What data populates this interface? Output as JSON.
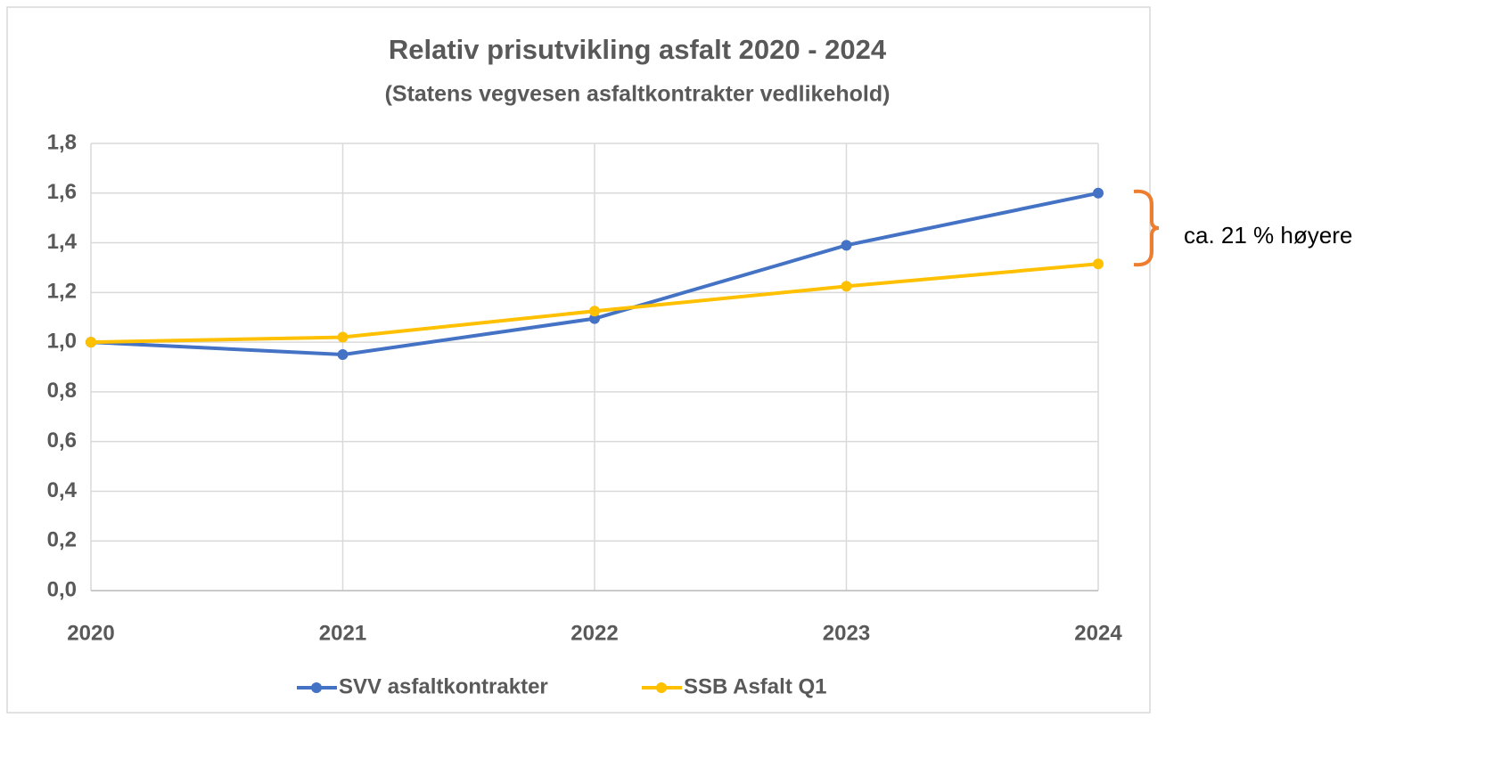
{
  "chart_data": {
    "type": "line",
    "title": "Relativ prisutvikling asfalt  2020 - 2024",
    "subtitle": "(Statens vegvesen asfaltkontrakter vedlikehold)",
    "x": [
      2020,
      2021,
      2022,
      2023,
      2024
    ],
    "xlim": [
      2020,
      2024
    ],
    "xticks": [
      2020,
      2021,
      2022,
      2023,
      2024
    ],
    "ylim": [
      0,
      1.8
    ],
    "yticks": [
      {
        "value": 0,
        "label": "0,0"
      },
      {
        "value": 0.2,
        "label": "0,2"
      },
      {
        "value": 0.4,
        "label": "0,4"
      },
      {
        "value": 0.6,
        "label": "0,6"
      },
      {
        "value": 0.8,
        "label": "0,8"
      },
      {
        "value": 1.0,
        "label": "1,0"
      },
      {
        "value": 1.2,
        "label": "1,2"
      },
      {
        "value": 1.4,
        "label": "1,4"
      },
      {
        "value": 1.6,
        "label": "1,6"
      },
      {
        "value": 1.8,
        "label": "1,8"
      }
    ],
    "grid": true,
    "legend": "bottom",
    "series": [
      {
        "name": "SVV asfaltkontrakter",
        "color": "#4472c4",
        "values": [
          1.0,
          0.95,
          1.095,
          1.39,
          1.6
        ]
      },
      {
        "name": "SSB Asfalt Q1",
        "color": "#ffc000",
        "values": [
          1.0,
          1.02,
          1.125,
          1.225,
          1.315
        ]
      }
    ],
    "annotation": "ca. 21 % høyere"
  }
}
